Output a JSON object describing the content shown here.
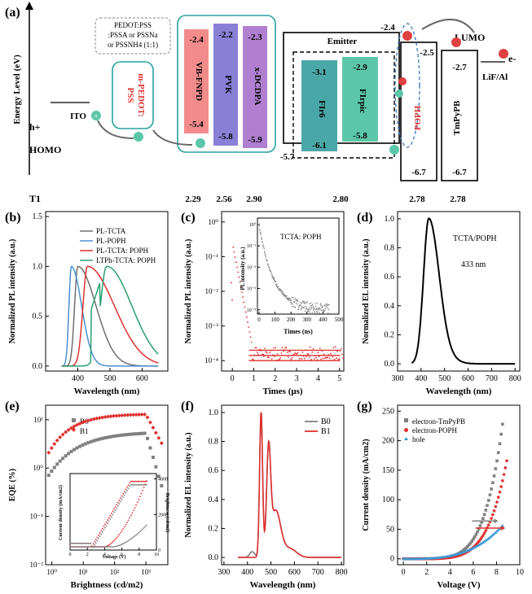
{
  "figure": {
    "panel_labels": [
      "(a)",
      "(b)",
      "(c)",
      "(d)",
      "(e)",
      "(f)",
      "(g)"
    ]
  },
  "panel_a": {
    "ylabel": "Energy Level (eV)",
    "lumo_label": "LUMO",
    "homo_label": "HOMO",
    "hole_label": "h+",
    "electron_label": "e-",
    "t1_label": "T1",
    "ito_label": "ITO",
    "pedot_note": [
      "PEDOT:PSS",
      ":PSSA or PSSNa",
      "or PSSNH4 (1:1)"
    ],
    "m_pedot_label": [
      "m-PEDOT:",
      "PSS"
    ],
    "emitter_label": "Emitter",
    "lif_label": "LiF/Al",
    "layers": [
      {
        "name": "VB-FNPD",
        "lumo": "-2.4",
        "homo": "-5.4",
        "color": "#f08080",
        "t1": "2.29"
      },
      {
        "name": "PVK",
        "lumo": "-2.2",
        "homo": "-5.8",
        "color": "#8a7fd6",
        "t1": "2.56"
      },
      {
        "name": "x-DCDPA",
        "lumo": "-2.3",
        "homo": "-5.9",
        "color": "#b07fd0",
        "t1": "2.90"
      },
      {
        "name": "FIr6",
        "lumo": "-3.1",
        "homo": "-6.1",
        "color": "#4aa7a8",
        "t1": "2.80"
      },
      {
        "name": "FIrpic",
        "lumo": "-2.9",
        "homo": "-5.8",
        "color": "#5cc7a8",
        "t1": ""
      },
      {
        "name": "POPH",
        "lumo": "-2.4",
        "homo": "-6.7",
        "color": "#e03030",
        "t1": "2.78"
      },
      {
        "name": "TmPyPB",
        "lumo": "-2.7",
        "homo": "-6.7",
        "color": "#111111",
        "t1": "2.78"
      }
    ],
    "extra_levels": {
      "emitter_homo": "-5.7",
      "poph_lumo_side": "-2.5"
    }
  },
  "chart_data": [
    {
      "id": "b",
      "type": "line",
      "xlabel": "Wavelength (nm)",
      "ylabel": "Normalized PL intensity (a.u.)",
      "xlim": [
        300,
        680
      ],
      "ylim": [
        -0.05,
        1.55
      ],
      "xticks": [
        400,
        500,
        600
      ],
      "yticks": [
        0.0,
        0.5,
        1.0,
        1.5
      ],
      "series": [
        {
          "name": "PL-TCTA",
          "color": "#707070",
          "peak": 400,
          "width": 20,
          "tail": 60
        },
        {
          "name": "PL-POPH",
          "color": "#4a90d0",
          "peak": 380,
          "width": 15,
          "tail": 30
        },
        {
          "name": "PL-TCTA: POPH",
          "color": "#e03030",
          "peak": 430,
          "width": 28,
          "tail": 90
        },
        {
          "name": "LTPh-TCTA: POPH",
          "color": "#2aa070",
          "peak": 490,
          "width": 40,
          "tail": 70
        }
      ]
    },
    {
      "id": "c",
      "type": "scatter",
      "xlabel": "Times (μs)",
      "ylabel": "Normalized PL intensity (a.u.)",
      "xlim": [
        -0.5,
        5.2
      ],
      "ylim_log": [
        -4.3,
        0.3
      ],
      "xticks": [
        0,
        1,
        2,
        3,
        4,
        5
      ],
      "yticks_log": [
        -4,
        -3,
        -2,
        -1,
        0
      ],
      "inset": {
        "label": "TCTA: POPH",
        "xlabel": "Times (ns)",
        "ylabel": "PL intensity (a.u.)",
        "xlim": [
          -10,
          500
        ],
        "xticks": [
          0,
          100,
          200,
          300,
          400,
          500
        ],
        "yticks_log": [
          -4,
          -3,
          -2,
          -1,
          0
        ]
      }
    },
    {
      "id": "d",
      "type": "line",
      "xlabel": "Wavelength (nm)",
      "ylabel": "Normalized EL intensity (a.u.)",
      "xlim": [
        300,
        820
      ],
      "ylim": [
        -0.05,
        1.05
      ],
      "xticks": [
        300,
        400,
        500,
        600,
        700,
        800
      ],
      "yticks": [
        0.0,
        0.2,
        0.4,
        0.6,
        0.8,
        1.0
      ],
      "annotation_title": "TCTA/POPH",
      "annotation_peak": "433 nm",
      "peak": 433
    },
    {
      "id": "e",
      "type": "scatter",
      "xlabel": "Brightness (cd/m2)",
      "ylabel": "EQE (%)",
      "xlim_log": [
        -0.2,
        3.7
      ],
      "ylim_log": [
        -2,
        1.3
      ],
      "xticks": [
        1,
        10,
        100,
        1000
      ],
      "yticks_log": [
        -2,
        -1,
        0,
        1
      ],
      "series": [
        {
          "name": "B0",
          "color": "#808080"
        },
        {
          "name": "B1",
          "color": "#e03030"
        }
      ],
      "inset": {
        "xlabel": "Voltage (V)",
        "ylabel_left": "Current density (mA/cm2)",
        "ylabel_right": "Brightness (cd/m2)",
        "xticks": [
          0,
          2,
          4,
          6,
          8,
          10
        ],
        "right_ticks": [
          0,
          2000,
          4000
        ]
      }
    },
    {
      "id": "f",
      "type": "line",
      "xlabel": "Wavelength (nm)",
      "ylabel": "Normalized EL intensity (a.u.)",
      "xlim": [
        290,
        810
      ],
      "ylim": [
        -0.05,
        1.05
      ],
      "xticks": [
        300,
        400,
        500,
        600,
        700,
        800
      ],
      "yticks": [
        0.0,
        0.2,
        0.4,
        0.6,
        0.8,
        1.0
      ],
      "series": [
        {
          "name": "B0",
          "color": "#808080"
        },
        {
          "name": "B1",
          "color": "#e03030"
        }
      ]
    },
    {
      "id": "g",
      "type": "scatter",
      "xlabel": "Voltage (V)",
      "ylabel": "Current density (mA/cm2)",
      "xlim": [
        -0.5,
        10
      ],
      "ylim": [
        -10,
        260
      ],
      "xticks": [
        0,
        2,
        4,
        6,
        8,
        10
      ],
      "yticks": [
        0,
        50,
        100,
        150,
        200,
        250
      ],
      "series": [
        {
          "name": "electron-TmPyPB",
          "color": "#808080",
          "vmax": 8.6,
          "jmax": 240
        },
        {
          "name": "electron-POPH",
          "color": "#e03030",
          "vmax": 8.9,
          "jmax": 168
        },
        {
          "name": "hole",
          "color": "#3c9ad8",
          "vmax": 8.6,
          "jmax": 58
        }
      ]
    }
  ]
}
